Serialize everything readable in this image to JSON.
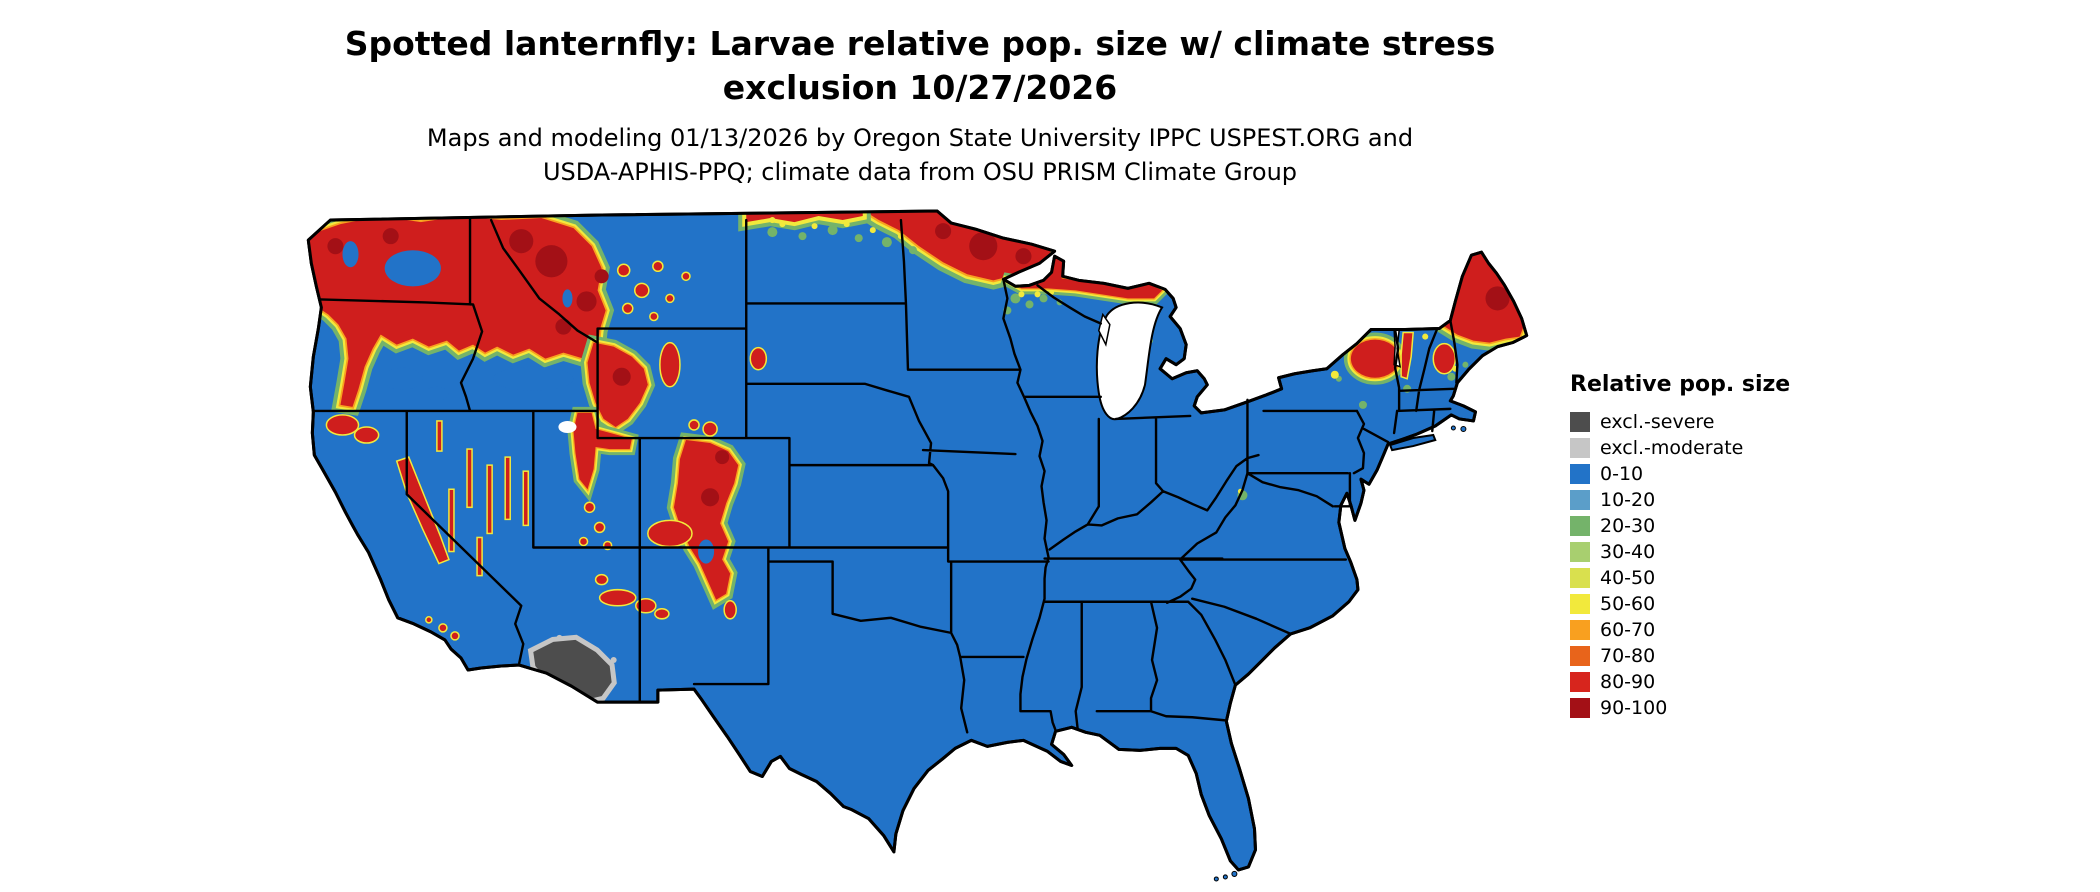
{
  "title": {
    "line1": "Spotted lanternfly: Larvae relative pop. size w/ climate stress",
    "line2": "exclusion 10/27/2026"
  },
  "subtitle": {
    "line1": "Maps and modeling 01/13/2026 by Oregon State University IPPC USPEST.ORG and",
    "line2": "USDA-APHIS-PPQ; climate data from OSU PRISM Climate Group"
  },
  "map": {
    "region": "Conterminous United States",
    "base_color": "#2273c8",
    "high_color": "#cf1e1d",
    "excluded_color": "#4d4d4d"
  },
  "legend": {
    "title": "Relative pop. size",
    "items": [
      {
        "label": "excl.-severe",
        "color": "#4d4d4d"
      },
      {
        "label": "excl.-moderate",
        "color": "#c6c6c6"
      },
      {
        "label": "0-10",
        "color": "#2273c8"
      },
      {
        "label": "10-20",
        "color": "#5b9ec9"
      },
      {
        "label": "20-30",
        "color": "#74b36a"
      },
      {
        "label": "30-40",
        "color": "#a8cf6f"
      },
      {
        "label": "40-50",
        "color": "#d9e04e"
      },
      {
        "label": "50-60",
        "color": "#f2e93c"
      },
      {
        "label": "60-70",
        "color": "#f9a01f"
      },
      {
        "label": "70-80",
        "color": "#e8641b"
      },
      {
        "label": "80-90",
        "color": "#d7251d"
      },
      {
        "label": "90-100",
        "color": "#a31016"
      }
    ]
  }
}
